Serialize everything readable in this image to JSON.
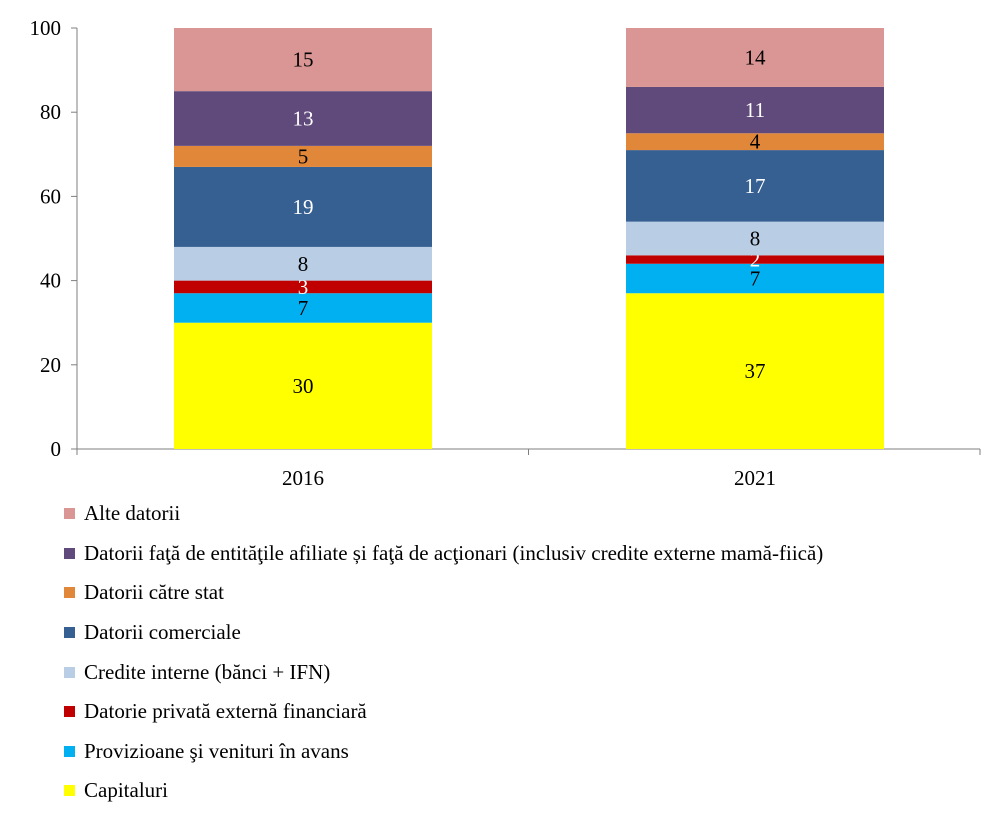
{
  "chart_data": {
    "type": "bar",
    "stacked": true,
    "categories": [
      "2016",
      "2021"
    ],
    "ylim": [
      0,
      100
    ],
    "yticks": [
      "0",
      "20",
      "40",
      "60",
      "80",
      "100"
    ],
    "grid": false,
    "legend_position": "bottom",
    "series": [
      {
        "name": "Capitaluri",
        "color": "#FFFF00",
        "label_color": "#000000",
        "values": [
          30,
          37
        ]
      },
      {
        "name": "Provizioane şi venituri în avans",
        "color": "#00B0F0",
        "label_color": "#000000",
        "values": [
          7,
          7
        ]
      },
      {
        "name": "Datorie privată externă financiară",
        "color": "#C00000",
        "label_color": "#FFFFFF",
        "values": [
          3,
          2
        ]
      },
      {
        "name": "Credite interne (bănci + IFN)",
        "color": "#B9CDE5",
        "label_color": "#000000",
        "values": [
          8,
          8
        ]
      },
      {
        "name": "Datorii comerciale",
        "color": "#376092",
        "label_color": "#FFFFFF",
        "values": [
          19,
          17
        ]
      },
      {
        "name": "Datorii către stat",
        "color": "#E0873A",
        "label_color": "#000000",
        "values": [
          5,
          4
        ]
      },
      {
        "name": "Datorii faţă de entităţile afiliate și faţă de acţionari (inclusiv credite externe mamă-fiică)",
        "color": "#604A7B",
        "label_color": "#FFFFFF",
        "values": [
          13,
          11
        ]
      },
      {
        "name": "Alte datorii",
        "color": "#D99694",
        "label_color": "#000000",
        "values": [
          15,
          14
        ]
      }
    ]
  }
}
